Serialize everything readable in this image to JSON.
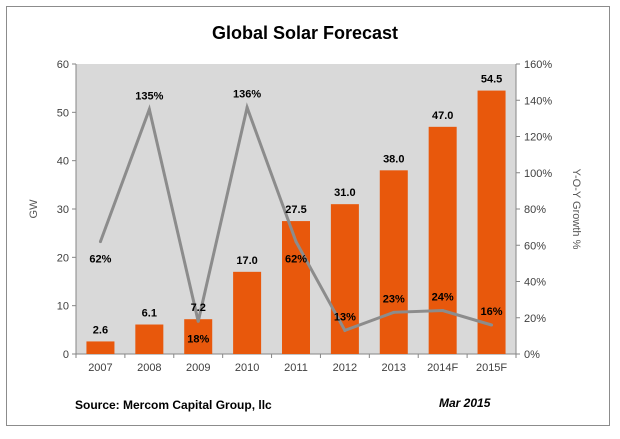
{
  "chart_data": {
    "type": "bar",
    "title": "Global Solar Forecast",
    "categories": [
      "2007",
      "2008",
      "2009",
      "2010",
      "2011",
      "2012",
      "2013",
      "2014F",
      "2015F"
    ],
    "series": [
      {
        "name": "GW",
        "type": "bar",
        "axis": "left",
        "values": [
          2.6,
          6.1,
          7.2,
          17.0,
          27.5,
          31.0,
          38.0,
          47.0,
          54.5
        ],
        "labels": [
          "2.6",
          "6.1",
          "7.2",
          "17.0",
          "27.5",
          "31.0",
          "38.0",
          "47.0",
          "54.5"
        ],
        "color": "#e8580c"
      },
      {
        "name": "Y-O-Y Growth %",
        "type": "line",
        "axis": "right",
        "values": [
          62,
          135,
          18,
          136,
          62,
          13,
          23,
          24,
          16
        ],
        "labels": [
          "62%",
          "135%",
          "18%",
          "136%",
          "62%",
          "13%",
          "23%",
          "24%",
          "16%"
        ],
        "color": "#8c8c8c"
      }
    ],
    "ylabel": "GW",
    "ylabel_right": "Y-O-Y Growth %",
    "ylim": [
      0,
      60
    ],
    "ylim_right": [
      0,
      160
    ],
    "yticks": [
      "0",
      "10",
      "20",
      "30",
      "40",
      "50",
      "60"
    ],
    "yticks_right": [
      "0%",
      "20%",
      "40%",
      "60%",
      "80%",
      "100%",
      "120%",
      "140%",
      "160%"
    ],
    "grid": false,
    "plot_background": "#d9d9d9"
  },
  "footer": {
    "source": "Source: Mercom Capital Group, llc",
    "date": "Mar 2015"
  }
}
